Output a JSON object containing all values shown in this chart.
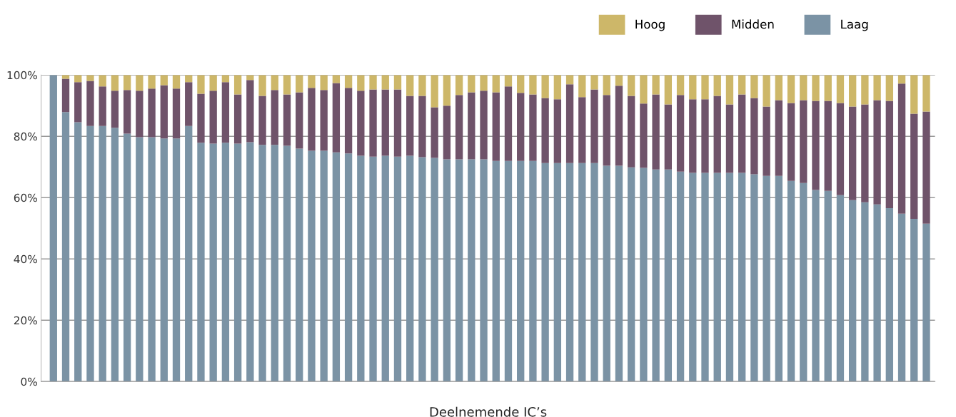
{
  "chart_data": {
    "type": "bar",
    "stacked": true,
    "xlabel": "Deelnemende IC’s",
    "categories": [
      null,
      null,
      null,
      null,
      null,
      null,
      null,
      null,
      null,
      null,
      null,
      null,
      null,
      null,
      null,
      null,
      null,
      null,
      null,
      null,
      null,
      null,
      null,
      null,
      null,
      null,
      null,
      null,
      null,
      null,
      null,
      null,
      null,
      null,
      null,
      null,
      null,
      null,
      null,
      null,
      null,
      null,
      null,
      null,
      null,
      null,
      null,
      null,
      null,
      null,
      null,
      null,
      null,
      null,
      null,
      null,
      null,
      null,
      null,
      null,
      null,
      null,
      null,
      null,
      null,
      null,
      null,
      null,
      null,
      null,
      null,
      null
    ],
    "series": [
      {
        "name": "Laag",
        "color": "#7b93a5",
        "values": [
          100,
          87.9,
          84.6,
          83.4,
          83.4,
          82.8,
          80.9,
          79.7,
          79.7,
          79.3,
          79.3,
          83.4,
          77.9,
          77.6,
          77.9,
          77.6,
          78.1,
          77.2,
          77.2,
          76.9,
          76.0,
          75.3,
          75.3,
          74.8,
          74.4,
          73.7,
          73.4,
          73.7,
          73.4,
          73.7,
          73.2,
          73.0,
          72.5,
          72.5,
          72.5,
          72.5,
          72.0,
          72.0,
          72.0,
          72.0,
          71.3,
          71.3,
          71.3,
          71.3,
          71.3,
          70.4,
          70.4,
          69.9,
          69.7,
          69.2,
          69.2,
          68.5,
          68.1,
          68.1,
          68.1,
          68.1,
          68.1,
          67.6,
          67.1,
          67.1,
          65.5,
          64.8,
          62.5,
          62.2,
          60.8,
          59.2,
          58.5,
          57.8,
          56.6,
          54.8,
          53.1,
          51.5
        ]
      },
      {
        "name": "Midden",
        "color": "#6f536a",
        "values": [
          0,
          10.9,
          13.1,
          14.7,
          12.9,
          12.1,
          14.2,
          15.2,
          15.9,
          17.4,
          16.3,
          14.3,
          16.0,
          17.3,
          19.8,
          16.1,
          20.3,
          16.0,
          17.9,
          16.8,
          18.4,
          20.5,
          19.8,
          22.6,
          21.4,
          21.2,
          21.9,
          21.6,
          21.9,
          19.5,
          20.0,
          16.5,
          17.5,
          21.0,
          21.9,
          22.4,
          22.4,
          24.3,
          22.2,
          21.7,
          21.2,
          20.8,
          25.7,
          21.5,
          24.0,
          23.1,
          26.1,
          23.3,
          21.0,
          24.5,
          21.2,
          25.0,
          24.0,
          24.0,
          25.1,
          22.3,
          25.6,
          24.9,
          22.6,
          24.7,
          25.4,
          27.0,
          29.1,
          29.4,
          30.1,
          30.5,
          31.9,
          34.0,
          35.0,
          42.4,
          34.3,
          36.6
        ]
      },
      {
        "name": "Hoog",
        "color": "#cdb769",
        "values": [
          0,
          1.2,
          2.3,
          1.9,
          3.7,
          5.1,
          4.9,
          5.1,
          4.4,
          3.3,
          4.4,
          2.3,
          6.1,
          5.1,
          2.3,
          6.3,
          1.6,
          6.8,
          4.9,
          6.3,
          5.6,
          4.2,
          4.9,
          2.6,
          4.2,
          5.1,
          4.7,
          4.7,
          4.7,
          6.8,
          6.8,
          10.5,
          10.0,
          6.5,
          5.6,
          5.1,
          5.6,
          3.7,
          5.8,
          6.3,
          7.5,
          7.9,
          3.0,
          7.2,
          4.7,
          6.5,
          3.5,
          6.8,
          9.3,
          6.3,
          9.6,
          6.5,
          7.9,
          7.9,
          6.8,
          9.6,
          6.3,
          7.5,
          10.3,
          8.2,
          9.1,
          8.2,
          8.4,
          8.4,
          9.1,
          10.3,
          9.6,
          8.2,
          8.4,
          2.8,
          12.6,
          11.9
        ]
      }
    ],
    "ylim": [
      0,
      100
    ],
    "yticks": [
      {
        "value": 0,
        "label": "0%"
      },
      {
        "value": 20,
        "label": "20%"
      },
      {
        "value": 40,
        "label": "40%"
      },
      {
        "value": 60,
        "label": "60%"
      },
      {
        "value": 80,
        "label": "80%"
      },
      {
        "value": 100,
        "label": "100%"
      }
    ],
    "grid": "y",
    "legend": "top right"
  }
}
